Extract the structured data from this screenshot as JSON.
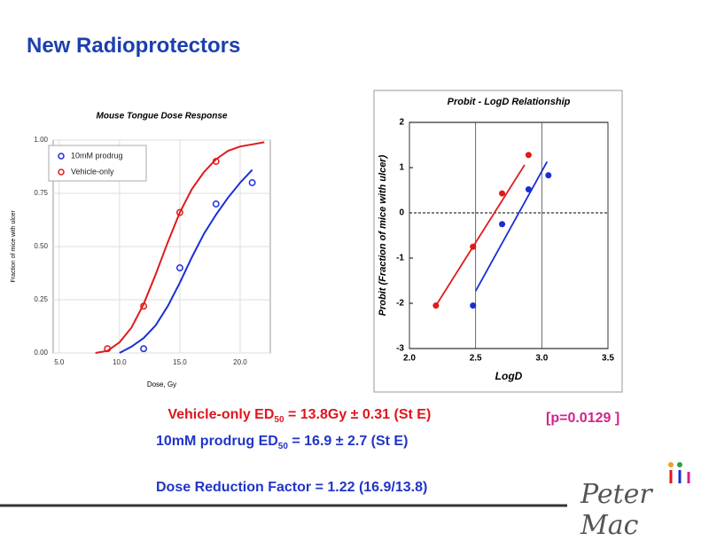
{
  "title": "New Radioprotectors",
  "summary": {
    "line1": [
      "Vehicle-only ED",
      "50",
      " = 13.8Gy ± 0.31 (St E)"
    ],
    "line2": [
      "10mM prodrug ED",
      "50",
      " = 16.9 ± 2.7 (St E)"
    ],
    "line3": "Dose Reduction Factor = 1.22 (16.9/13.8)"
  },
  "p_value": "[p=0.0129 ]",
  "logo": "Peter Mac",
  "chart_data": [
    {
      "type": "scatter",
      "title": "Mouse Tongue Dose Response",
      "x_label": "Dose, Gy",
      "y_label": "Fraction of mice with ulcer",
      "xlim": [
        4.5,
        22.5
      ],
      "ylim": [
        0,
        1
      ],
      "xticks": [
        {
          "value": 5,
          "label": "5.0"
        },
        {
          "value": 10,
          "label": "10.0"
        },
        {
          "value": 15,
          "label": "15.0"
        },
        {
          "value": 20,
          "label": "20.0"
        }
      ],
      "yticks": [
        {
          "value": 0,
          "label": "0.00"
        },
        {
          "value": 0.25,
          "label": "0.25"
        },
        {
          "value": 0.5,
          "label": "0.50"
        },
        {
          "value": 0.75,
          "label": "0.75"
        },
        {
          "value": 1,
          "label": "1.00"
        }
      ],
      "grid": true,
      "legend": "upper left",
      "marker": "open",
      "series": [
        {
          "name": "10mM prodrug",
          "color": "#1a2fd6",
          "x": [
            12,
            15,
            18,
            21
          ],
          "values": [
            0.02,
            0.4,
            0.7,
            0.8
          ],
          "fit_x": [
            8,
            9,
            10,
            11,
            12,
            13,
            14,
            15,
            16,
            17,
            18,
            19,
            20,
            21,
            22
          ],
          "fit": [
            null,
            null,
            0.0,
            0.03,
            0.07,
            0.13,
            0.22,
            0.33,
            0.45,
            0.56,
            0.65,
            0.73,
            0.8,
            0.86,
            null
          ]
        },
        {
          "name": "Vehicle-only",
          "color": "#e01a1a",
          "x": [
            9,
            12,
            15,
            18
          ],
          "values": [
            0.02,
            0.22,
            0.66,
            0.9
          ],
          "fit_x": [
            8,
            9,
            10,
            11,
            12,
            13,
            14,
            15,
            16,
            17,
            18,
            19,
            20,
            21,
            22
          ],
          "fit": [
            0.0,
            0.01,
            0.05,
            0.12,
            0.23,
            0.37,
            0.52,
            0.66,
            0.77,
            0.85,
            0.91,
            0.95,
            0.97,
            0.98,
            0.99
          ]
        }
      ]
    },
    {
      "type": "scatter",
      "title": "Probit - LogD Relationship",
      "x_label": "LogD",
      "y_label": "Probit (Fraction of mice with ulcer)",
      "xlim": [
        2.0,
        3.5
      ],
      "ylim": [
        -3,
        2
      ],
      "xticks": [
        {
          "value": 2,
          "label": "2.0"
        },
        {
          "value": 2.5,
          "label": "2.5"
        },
        {
          "value": 3,
          "label": "3.0"
        },
        {
          "value": 3.5,
          "label": "3.5"
        }
      ],
      "yticks": [
        -3,
        -2,
        -1,
        0,
        1,
        2
      ],
      "grid": true,
      "zero_line": "dashed",
      "marker": "filled",
      "series": [
        {
          "color": "#e01a1a",
          "x": [
            2.2,
            2.48,
            2.7,
            2.9
          ],
          "values": [
            -2.05,
            -0.75,
            0.43,
            1.28
          ],
          "fit_x": [
            2.2,
            2.87
          ],
          "fit": [
            -2.05,
            1.06
          ]
        },
        {
          "color": "#1a2fd6",
          "x": [
            2.48,
            2.7,
            2.9,
            3.05
          ],
          "values": [
            -2.05,
            -0.25,
            0.52,
            0.83
          ],
          "fit_x": [
            2.5,
            3.04
          ],
          "fit": [
            -1.73,
            1.13
          ]
        }
      ]
    }
  ]
}
